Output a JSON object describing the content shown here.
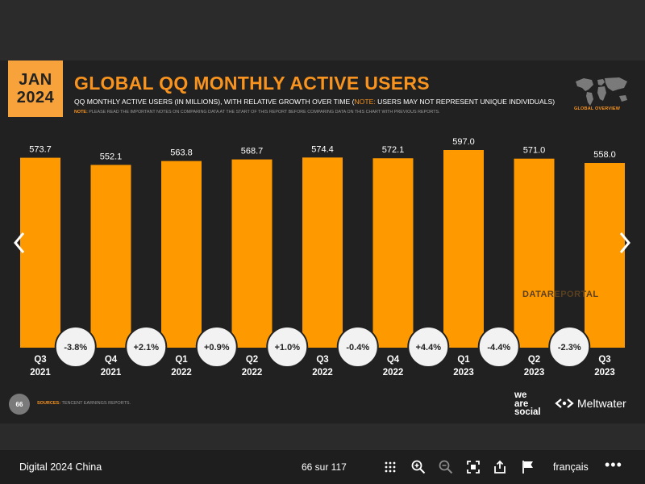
{
  "slide": {
    "date_badge": {
      "month": "JAN",
      "year": "2024"
    },
    "title": "GLOBAL QQ MONTHLY ACTIVE USERS",
    "subtitle_main": "QQ MONTHLY ACTIVE USERS (IN MILLIONS), WITH RELATIVE GROWTH OVER TIME (",
    "subtitle_note_label": "NOTE:",
    "subtitle_note_text": " USERS MAY NOT REPRESENT UNIQUE INDIVIDUALS)",
    "note_label": "NOTE:",
    "note_text": " PLEASE READ THE IMPORTANT NOTES ON COMPARING DATA AT THE START OF THIS REPORT BEFORE COMPARING DATA ON THIS CHART WITH PREVIOUS REPORTS.",
    "map_label": "GLOBAL OVERVIEW",
    "watermark": "DATAREPORTAL",
    "page_number": "66",
    "sources_label": "SOURCES:",
    "sources_text": " TENCENT EARNINGS REPORTS.",
    "logo_was": [
      "we",
      "are",
      "social"
    ],
    "logo_meltwater": "Meltwater",
    "colors": {
      "bar": "#ff9900",
      "accent": "#f7931e",
      "slide_bg": "#212121",
      "pill_bg": "#f2f2f2"
    }
  },
  "chart_data": {
    "type": "bar",
    "categories": [
      [
        "Q3",
        "2021"
      ],
      [
        "Q4",
        "2021"
      ],
      [
        "Q1",
        "2022"
      ],
      [
        "Q2",
        "2022"
      ],
      [
        "Q3",
        "2022"
      ],
      [
        "Q4",
        "2022"
      ],
      [
        "Q1",
        "2023"
      ],
      [
        "Q2",
        "2023"
      ],
      [
        "Q3",
        "2023"
      ]
    ],
    "values": [
      573.7,
      552.1,
      563.8,
      568.7,
      574.4,
      572.1,
      597.0,
      571.0,
      558.0
    ],
    "value_labels": [
      "573.7",
      "552.1",
      "563.8",
      "568.7",
      "574.4",
      "572.1",
      "597.0",
      "571.0",
      "558.0"
    ],
    "growth_labels": [
      "-3.8%",
      "+2.1%",
      "+0.9%",
      "+1.0%",
      "-0.4%",
      "+4.4%",
      "-4.4%",
      "-2.3%"
    ],
    "ylim": [
      0,
      597.0
    ]
  },
  "viewer": {
    "document_title": "Digital 2024 China",
    "page_counter": "66 sur 117",
    "language": "français",
    "tools": [
      "grid-icon",
      "zoom-in-icon",
      "zoom-out-icon",
      "fullscreen-icon",
      "share-icon",
      "flag-icon",
      "more-icon"
    ]
  }
}
